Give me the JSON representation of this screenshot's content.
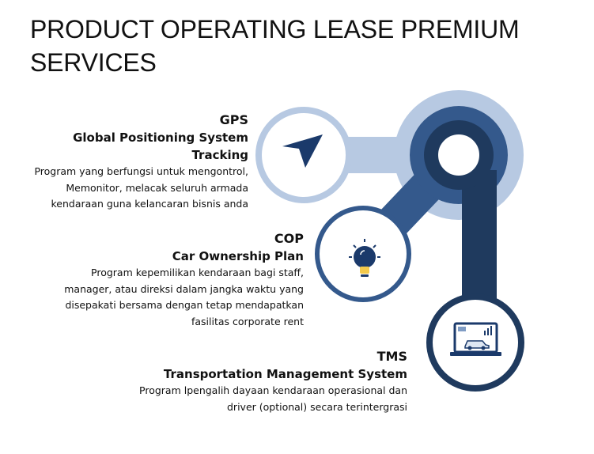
{
  "title": "PRODUCT OPERATING LEASE PREMIUM SERVICES",
  "colors": {
    "light_ring": "#b7c9e2",
    "mid_blue": "#34598c",
    "dark_navy": "#1f3a5e",
    "icon_navy": "#1b3a6b",
    "icon_yellow": "#f2c94c"
  },
  "services": [
    {
      "code": "GPS",
      "name": "Global Positioning System Tracking",
      "description": [
        "Program yang berfungsi untuk mengontrol,",
        "Memonitor, melacak seluruh armada",
        "kendaraan guna kelancaran bisnis anda"
      ],
      "icon": "navigation-arrow-icon"
    },
    {
      "code": "COP",
      "name": "Car Ownership Plan",
      "description": [
        "Program kepemilikan kendaraan bagi staff,",
        "manager, atau direksi dalam jangka waktu yang",
        "disepakati bersama dengan tetap mendapatkan",
        "fasilitas corporate rent"
      ],
      "icon": "lightbulb-icon"
    },
    {
      "code": "TMS",
      "name": "Transportation Management System",
      "description": [
        "Program lpengalih dayaan kendaraan operasional dan",
        "driver (optional) secara terintergrasi"
      ],
      "icon": "laptop-car-icon"
    }
  ]
}
